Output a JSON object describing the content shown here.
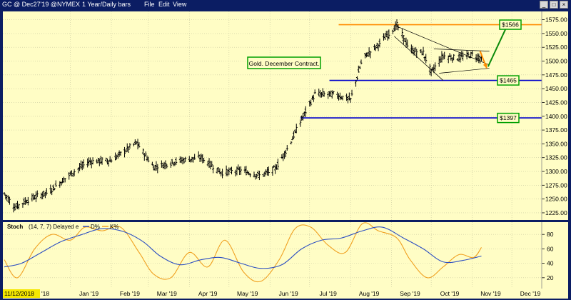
{
  "window": {
    "symbol_title": "GC @ Dec27'19 @NYMEX",
    "interval": "1 Year/Daily bars",
    "menu": [
      "File",
      "Edit",
      "View"
    ],
    "buttons": {
      "minimize": "_",
      "maximize": "□",
      "close": "×"
    }
  },
  "colors": {
    "background": "#fffdc5",
    "frame": "#0b1d63",
    "bars": "#000000",
    "resistance_line": "#ff8c00",
    "support_line": "#0000cc",
    "callout_border": "#00a000",
    "projection_green": "#0a8a0a",
    "projection_orange": "#ff8c00",
    "d_line": "#2d4fc2",
    "k_line": "#f0a020"
  },
  "chart_data": [
    {
      "type": "ohlc",
      "annotation": "Gold. December Contract.",
      "x_tick_labels": [
        "11/12/2018",
        "'18",
        "Jan '19",
        "Feb '19",
        "Mar '19",
        "Apr '19",
        "May '19",
        "Jun '19",
        "Jul '19",
        "Aug '19",
        "Sep '19",
        "Oct '19",
        "Nov '19",
        "Dec '19"
      ],
      "y_ticks": [
        1225,
        1250,
        1275,
        1300,
        1325,
        1350,
        1375,
        1400,
        1425,
        1450,
        1475,
        1500,
        1525,
        1550,
        1575
      ],
      "ylim": [
        1212,
        1590
      ],
      "grid": true,
      "series_anchors": {
        "x": [
          "2018-11-12",
          "2018-11-20",
          "2018-12-01",
          "2018-12-15",
          "2019-01-01",
          "2019-01-15",
          "2019-02-01",
          "2019-02-20",
          "2019-03-05",
          "2019-03-25",
          "2019-04-10",
          "2019-04-25",
          "2019-05-10",
          "2019-05-25",
          "2019-06-05",
          "2019-06-15",
          "2019-06-25",
          "2019-07-05",
          "2019-07-20",
          "2019-08-01",
          "2019-08-10",
          "2019-08-20",
          "2019-09-01",
          "2019-09-05",
          "2019-09-15",
          "2019-09-25",
          "2019-10-01",
          "2019-10-10",
          "2019-10-20",
          "2019-11-01",
          "2019-11-08"
        ],
        "close": [
          1260,
          1235,
          1250,
          1262,
          1295,
          1318,
          1320,
          1352,
          1308,
          1320,
          1325,
          1298,
          1302,
          1292,
          1305,
          1345,
          1395,
          1440,
          1440,
          1430,
          1505,
          1525,
          1555,
          1565,
          1520,
          1515,
          1480,
          1510,
          1505,
          1512,
          1505
        ]
      },
      "levels": [
        {
          "label": "$1566",
          "value": 1566,
          "start": "2019-07-23",
          "color": "#ff8c00"
        },
        {
          "label": "$1465",
          "value": 1465,
          "start": "2019-07-16",
          "color": "#0000cc"
        },
        {
          "label": "$1397",
          "value": 1397,
          "start": "2019-06-24",
          "color": "#0000cc"
        }
      ],
      "pattern_lines": [
        {
          "from": [
            "2019-09-03",
            1565
          ],
          "to": [
            "2019-11-14",
            1493
          ]
        },
        {
          "from": [
            "2019-09-03",
            1545
          ],
          "to": [
            "2019-10-10",
            1465
          ]
        },
        {
          "from": [
            "2019-10-03",
            1522
          ],
          "to": [
            "2019-11-14",
            1518
          ]
        },
        {
          "from": [
            "2019-10-07",
            1478
          ],
          "to": [
            "2019-11-14",
            1487
          ]
        }
      ],
      "projection_arrows": [
        {
          "from": [
            "2019-11-07",
            1518
          ],
          "to": [
            "2019-11-12",
            1487
          ],
          "color": "#ff8c00"
        },
        {
          "from": [
            "2019-11-13",
            1490
          ],
          "to": [
            "2019-11-28",
            1567
          ],
          "color": "#0a8a0a"
        }
      ]
    },
    {
      "type": "line",
      "name": "Stoch",
      "params": "(14, 7, 7) Delayed e",
      "legend": [
        "D%",
        "K%"
      ],
      "y_ticks": [
        20,
        40,
        60,
        80
      ],
      "ylim": [
        5,
        97
      ],
      "series": [
        {
          "name": "D%",
          "x": [
            "2018-11-12",
            "2018-11-25",
            "2018-12-10",
            "2018-12-25",
            "2019-01-10",
            "2019-01-25",
            "2019-02-10",
            "2019-02-25",
            "2019-03-10",
            "2019-03-25",
            "2019-04-10",
            "2019-04-25",
            "2019-05-10",
            "2019-05-25",
            "2019-06-10",
            "2019-06-25",
            "2019-07-10",
            "2019-07-25",
            "2019-08-10",
            "2019-08-25",
            "2019-09-10",
            "2019-09-25",
            "2019-10-10",
            "2019-10-25",
            "2019-11-08"
          ],
          "values": [
            35,
            40,
            55,
            70,
            80,
            88,
            84,
            70,
            50,
            38,
            45,
            48,
            40,
            33,
            38,
            60,
            72,
            75,
            85,
            90,
            75,
            60,
            42,
            44,
            50
          ]
        },
        {
          "name": "K%",
          "x": [
            "2018-11-12",
            "2018-11-22",
            "2018-12-05",
            "2018-12-18",
            "2019-01-01",
            "2019-01-12",
            "2019-01-25",
            "2019-02-08",
            "2019-02-22",
            "2019-03-05",
            "2019-03-18",
            "2019-04-01",
            "2019-04-15",
            "2019-04-28",
            "2019-05-12",
            "2019-05-25",
            "2019-06-08",
            "2019-06-20",
            "2019-07-02",
            "2019-07-15",
            "2019-07-28",
            "2019-08-10",
            "2019-08-22",
            "2019-09-05",
            "2019-09-15",
            "2019-09-28",
            "2019-10-10",
            "2019-10-22",
            "2019-11-02",
            "2019-11-08"
          ],
          "values": [
            45,
            20,
            60,
            80,
            72,
            90,
            85,
            90,
            55,
            25,
            20,
            55,
            35,
            72,
            28,
            15,
            45,
            88,
            90,
            65,
            55,
            95,
            85,
            75,
            45,
            20,
            35,
            52,
            48,
            62
          ]
        }
      ]
    }
  ]
}
